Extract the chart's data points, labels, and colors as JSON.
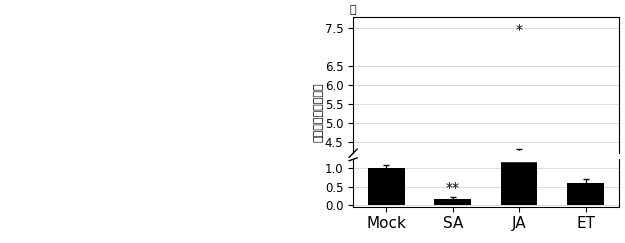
{
  "categories": [
    "Mock",
    "SA",
    "JA",
    "ET"
  ],
  "values": [
    1.0,
    0.15,
    2.75,
    0.6
  ],
  "errors": [
    0.09,
    0.05,
    1.55,
    0.1
  ],
  "significance": [
    "",
    "**",
    "*",
    ""
  ],
  "bar_color": "#000000",
  "background_color": "#ffffff",
  "ylabel": "紋枝病菌糸の相対量",
  "yticks_lower": [
    0,
    0.5,
    1.0
  ],
  "yticks_upper": [
    4.5,
    5.0,
    5.5,
    6.0,
    6.5,
    7.5
  ],
  "ylim_lower": [
    -0.05,
    1.25
  ],
  "ylim_upper": [
    4.2,
    7.8
  ],
  "title_char": "喝",
  "sig_fontsize": 10,
  "tick_fontsize": 8.5,
  "label_fontsize": 8,
  "xticklabel_fontsize": 11
}
